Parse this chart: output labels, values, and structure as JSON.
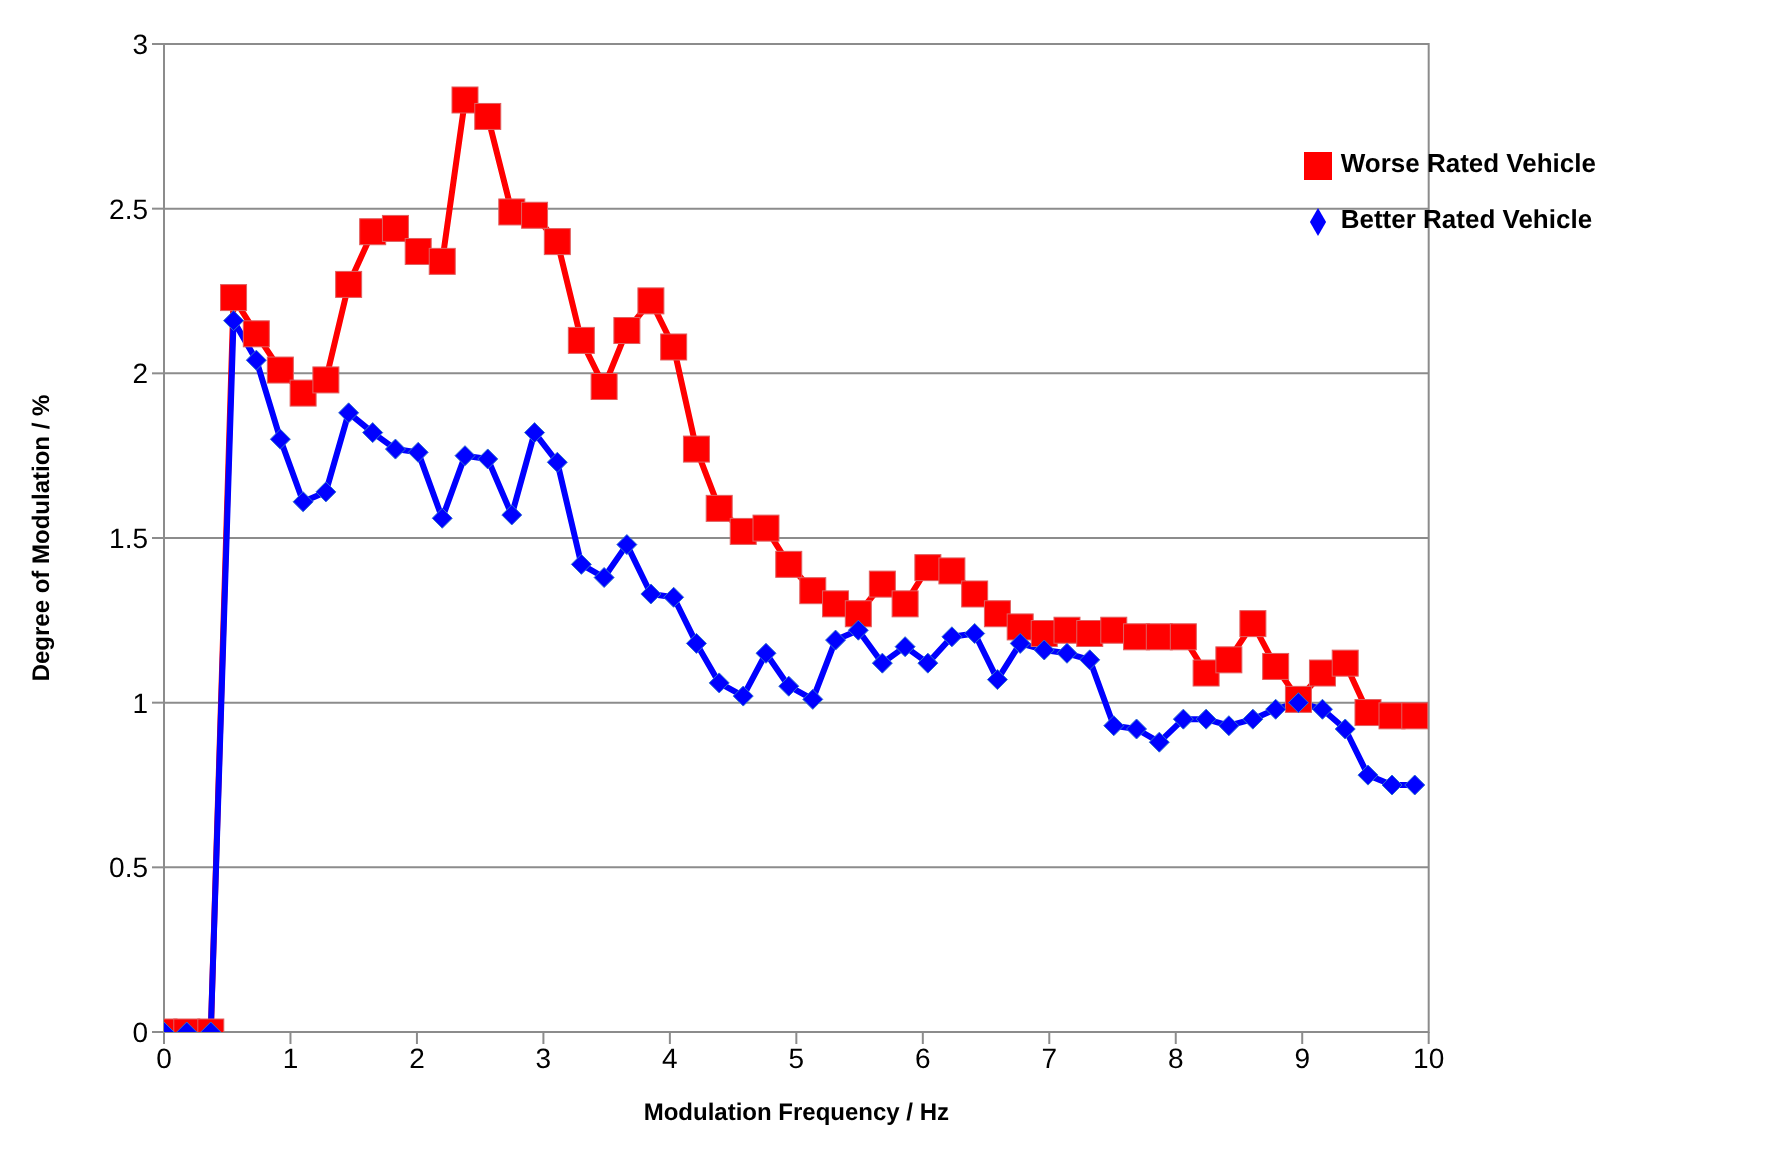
{
  "chart_data": {
    "type": "line",
    "xlabel": "Modulation Frequency / Hz",
    "ylabel": "Degree of Modulation / %",
    "x": [
      0,
      0.18,
      0.37,
      0.55,
      0.73,
      0.92,
      1.1,
      1.28,
      1.46,
      1.65,
      1.83,
      2.01,
      2.2,
      2.38,
      2.56,
      2.75,
      2.93,
      3.11,
      3.3,
      3.48,
      3.66,
      3.85,
      4.03,
      4.21,
      4.39,
      4.58,
      4.76,
      4.94,
      5.13,
      5.31,
      5.49,
      5.68,
      5.86,
      6.04,
      6.23,
      6.41,
      6.59,
      6.77,
      6.96,
      7.14,
      7.32,
      7.51,
      7.69,
      7.87,
      8.06,
      8.24,
      8.42,
      8.61,
      8.79,
      8.97,
      9.16,
      9.34,
      9.52,
      9.71,
      9.89
    ],
    "series": [
      {
        "name": "Worse Rated Vehicle",
        "color": "#ff0000",
        "marker": "square",
        "values": [
          0,
          0,
          0,
          2.23,
          2.12,
          2.01,
          1.94,
          1.98,
          2.27,
          2.43,
          2.44,
          2.37,
          2.34,
          2.83,
          2.78,
          2.49,
          2.48,
          2.4,
          2.1,
          1.96,
          2.13,
          2.22,
          2.08,
          1.77,
          1.59,
          1.52,
          1.53,
          1.42,
          1.34,
          1.3,
          1.27,
          1.36,
          1.3,
          1.41,
          1.4,
          1.33,
          1.27,
          1.23,
          1.21,
          1.22,
          1.21,
          1.22,
          1.2,
          1.2,
          1.2,
          1.09,
          1.13,
          1.24,
          1.11,
          1.01,
          1.09,
          1.12,
          0.97,
          0.96,
          0.96
        ]
      },
      {
        "name": "Better Rated Vehicle",
        "color": "#0000ff",
        "marker": "diamond",
        "values": [
          0,
          0,
          0,
          2.16,
          2.04,
          1.8,
          1.61,
          1.64,
          1.88,
          1.82,
          1.77,
          1.76,
          1.56,
          1.75,
          1.74,
          1.57,
          1.82,
          1.73,
          1.42,
          1.38,
          1.48,
          1.33,
          1.32,
          1.18,
          1.06,
          1.02,
          1.15,
          1.05,
          1.01,
          1.19,
          1.22,
          1.12,
          1.17,
          1.12,
          1.2,
          1.21,
          1.07,
          1.18,
          1.16,
          1.15,
          1.13,
          0.93,
          0.92,
          0.88,
          0.95,
          0.95,
          0.93,
          0.95,
          0.98,
          1,
          0.98,
          0.92,
          0.78,
          0.75,
          0.75
        ]
      }
    ],
    "xlim": [
      0,
      10
    ],
    "xticks": [
      0,
      1,
      2,
      3,
      4,
      5,
      6,
      7,
      8,
      9,
      10
    ],
    "ylim": [
      0,
      3
    ],
    "yticks": [
      0,
      0.5,
      1,
      1.5,
      2,
      2.5,
      3
    ],
    "grid": "y",
    "legend": "top right"
  }
}
